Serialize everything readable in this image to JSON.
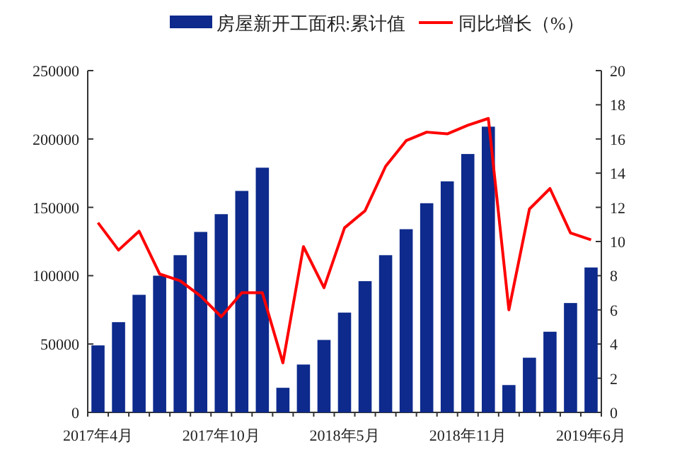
{
  "chart_data": {
    "type": "bar",
    "categories": [
      "2017年4月",
      null,
      null,
      null,
      null,
      null,
      "2017年10月",
      null,
      null,
      null,
      null,
      null,
      "2018年5月",
      null,
      null,
      null,
      null,
      null,
      "2018年11月",
      null,
      null,
      null,
      null,
      null,
      "2019年6月"
    ],
    "series": [
      {
        "name": "房屋新开工面积:累计值",
        "color": "#0d2a8c",
        "values": [
          49000,
          66000,
          86000,
          100000,
          115000,
          132000,
          145000,
          162000,
          179000,
          18000,
          35000,
          53000,
          73000,
          96000,
          115000,
          134000,
          153000,
          169000,
          189000,
          209000,
          20000,
          40000,
          59000,
          80000,
          106000
        ]
      },
      {
        "name": "同比增长（%）",
        "type": "line",
        "axis": "y2",
        "color": "#ff0000",
        "values": [
          11.1,
          9.5,
          10.6,
          8.1,
          7.7,
          6.8,
          5.6,
          7.0,
          7.0,
          2.9,
          9.7,
          7.3,
          10.8,
          11.8,
          14.4,
          15.9,
          16.4,
          16.3,
          16.8,
          17.2,
          6.0,
          11.9,
          13.1,
          10.5,
          10.1
        ]
      }
    ],
    "ylim": [
      0,
      250000
    ],
    "yticks": [
      0,
      50000,
      100000,
      150000,
      200000,
      250000
    ],
    "y2lim": [
      0,
      20
    ],
    "y2ticks": [
      0,
      2,
      4,
      6,
      8,
      10,
      12,
      14,
      16,
      18,
      20
    ],
    "legend": "top",
    "grid": false,
    "marker": "none",
    "line_style": "solid"
  }
}
